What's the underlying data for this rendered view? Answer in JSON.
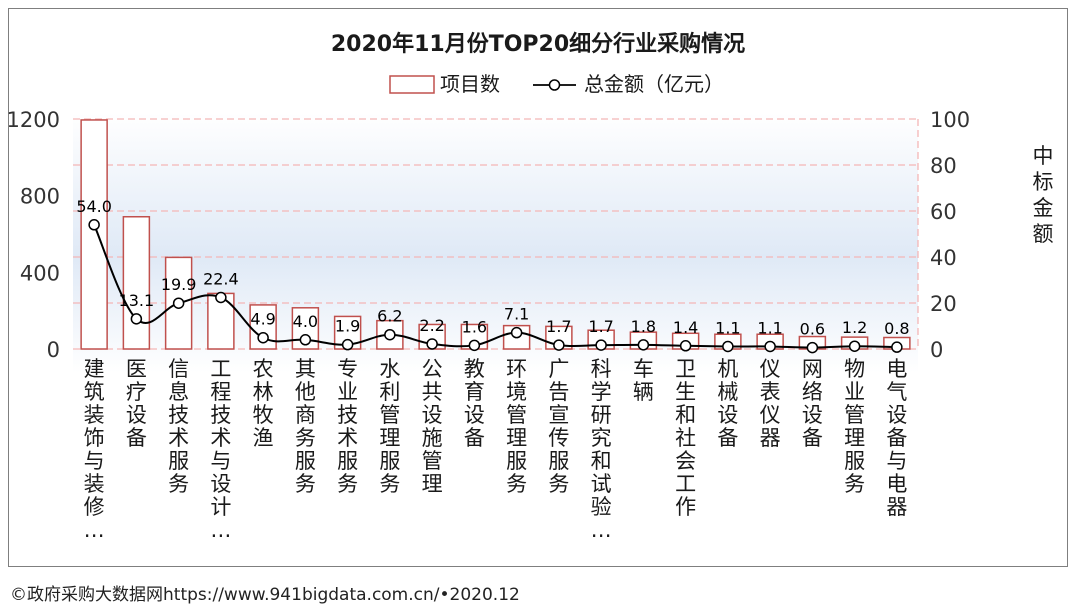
{
  "chart_data": {
    "type": "bar",
    "title": "2020年11月份TOP20细分行业采购情况",
    "legend": {
      "bar_label": "项目数",
      "line_label": "总金额（亿元）",
      "placement": "top-center"
    },
    "categories": [
      "建筑装饰与装修…",
      "医疗设备",
      "信息技术服务",
      "工程技术与设计…",
      "农林牧渔",
      "其他商务服务",
      "专业技术服务",
      "水利管理服务",
      "公共设施管理",
      "教育设备",
      "环境管理服务",
      "广告宣传服务",
      "科学研究和试验…",
      "车辆",
      "卫生和社会工作",
      "机械设备",
      "仪表仪器",
      "网络设备",
      "物业管理服务",
      "电气设备与电器"
    ],
    "series": [
      {
        "name": "项目数",
        "axis": "left",
        "type": "bar",
        "values": [
          1195,
          690,
          478,
          290,
          230,
          215,
          170,
          148,
          128,
          128,
          122,
          118,
          98,
          88,
          82,
          77,
          77,
          65,
          62,
          60
        ]
      },
      {
        "name": "总金额（亿元）",
        "axis": "right",
        "type": "line",
        "values": [
          54.0,
          13.1,
          19.9,
          22.4,
          4.9,
          4.0,
          1.9,
          6.2,
          2.2,
          1.6,
          7.1,
          1.7,
          1.7,
          1.8,
          1.4,
          1.1,
          1.1,
          0.6,
          1.2,
          0.8
        ],
        "labels": [
          "54.0",
          "13.1",
          "19.9",
          "22.4",
          "4.9",
          "4.0",
          "1.9",
          "6.2",
          "2.2",
          "1.6",
          "7.1",
          "1.7",
          "1.7",
          "1.8",
          "1.4",
          "1.1",
          "1.1",
          "0.6",
          "1.2",
          "0.8"
        ]
      }
    ],
    "y_left": {
      "ticks": [
        "0",
        "400",
        "800",
        "1200"
      ],
      "ylim": [
        0,
        1200
      ]
    },
    "y_right": {
      "ticks": [
        "0",
        "20",
        "40",
        "60",
        "80",
        "100"
      ],
      "ylim": [
        0,
        100
      ],
      "label": "中标金额"
    },
    "grid": true,
    "colors": {
      "bar_stroke": "#c0504d",
      "bar_fill": "#ffffff",
      "line": "#000000",
      "grid": "#f4b6b6",
      "background_top": "#ffffff",
      "background_mid": "#dfe9f6",
      "background_bottom": "#ffffff"
    }
  },
  "footer": {
    "source": "©政府采购大数据网https://www.941bigdata.com.cn/•2020.12"
  }
}
